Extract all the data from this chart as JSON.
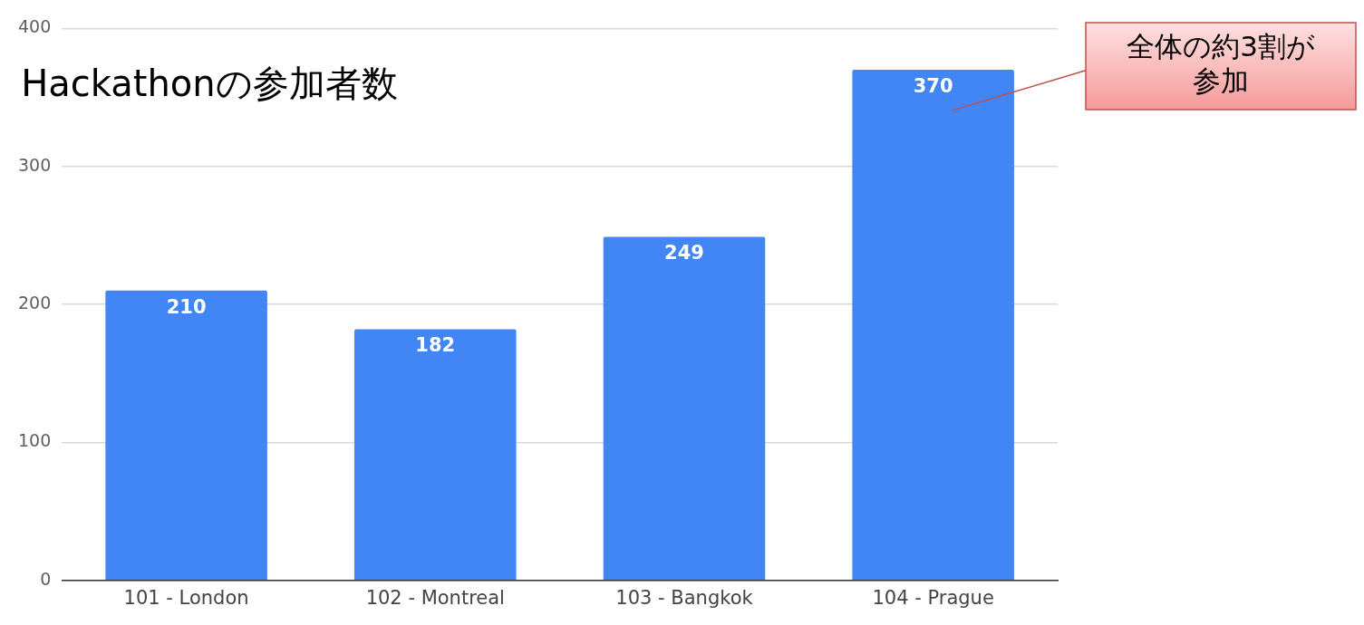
{
  "chart_data": {
    "type": "bar",
    "title": "Hackathonの参加者数",
    "categories": [
      "101 - London",
      "102 - Montreal",
      "103 - Bangkok",
      "104 - Prague"
    ],
    "values": [
      210,
      182,
      249,
      370
    ],
    "color": "#4285f4",
    "data_labels": true,
    "ylim": [
      0,
      400
    ],
    "yticks": [
      0,
      100,
      200,
      300,
      400
    ],
    "grid": "y",
    "legend": false,
    "annotations": [
      "全体の約3割が参加"
    ]
  }
}
